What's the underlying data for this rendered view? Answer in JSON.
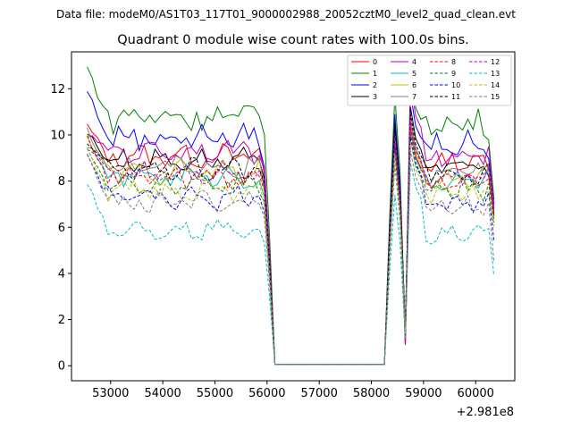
{
  "figure": {
    "suptitle": "Data file: modeM0/AS1T03_117T01_9000002988_20052cztM0_level2_quad_clean.evt"
  },
  "chart_data": {
    "type": "line",
    "title": "Quadrant 0 module wise count rates with 100.0s bins.",
    "xlabel": "",
    "ylabel": "",
    "x_offset_label": "+2.981e8",
    "xlim": [
      52250,
      60750
    ],
    "ylim": [
      -0.65,
      13.6
    ],
    "x_ticks": [
      53000,
      54000,
      55000,
      56000,
      57000,
      58000,
      59000,
      60000
    ],
    "x_tick_labels": [
      "53000",
      "54000",
      "55000",
      "56000",
      "57000",
      "58000",
      "59000",
      "60000"
    ],
    "y_ticks": [
      0,
      2,
      4,
      6,
      8,
      10,
      12
    ],
    "y_tick_labels": [
      "0",
      "2",
      "4",
      "6",
      "8",
      "10",
      "12"
    ],
    "legend_position": "top-right",
    "legend_columns": 4,
    "series": [
      {
        "name": "0",
        "color": "#ff0000",
        "dash": "solid",
        "level": 9.1,
        "start": 10.4,
        "amp": 0.35,
        "gap_left": 8.3,
        "p1": 10.2,
        "p2": 10.3,
        "end": 6.6
      },
      {
        "name": "1",
        "color": "#008000",
        "dash": "solid",
        "level": 10.8,
        "start": 12.9,
        "amp": 0.55,
        "gap_left": 10.0,
        "p1": 11.7,
        "p2": 12.7,
        "end": 7.2
      },
      {
        "name": "2",
        "color": "#0000ff",
        "dash": "solid",
        "level": 9.9,
        "start": 11.9,
        "amp": 0.45,
        "gap_left": 8.6,
        "p1": 10.9,
        "p2": 11.8,
        "end": 7.0
      },
      {
        "name": "3",
        "color": "#000000",
        "dash": "solid",
        "level": 8.9,
        "start": 10.1,
        "amp": 0.35,
        "gap_left": 8.1,
        "p1": 10.5,
        "p2": 11.2,
        "end": 6.5
      },
      {
        "name": "4",
        "color": "#bf00bf",
        "dash": "solid",
        "level": 9.3,
        "start": 10.0,
        "amp": 0.35,
        "gap_left": 8.5,
        "p1": 10.1,
        "p2": 12.3,
        "end": 6.8
      },
      {
        "name": "5",
        "color": "#00bfbf",
        "dash": "solid",
        "level": 8.2,
        "start": 9.6,
        "amp": 0.35,
        "gap_left": 7.3,
        "p1": 9.6,
        "p2": 10.2,
        "end": 6.4
      },
      {
        "name": "6",
        "color": "#bfbf00",
        "dash": "solid",
        "level": 8.4,
        "start": 9.9,
        "amp": 0.35,
        "gap_left": 7.5,
        "p1": 9.9,
        "p2": 10.5,
        "end": 6.3
      },
      {
        "name": "7",
        "color": "#808080",
        "dash": "solid",
        "level": 8.6,
        "start": 10.2,
        "amp": 0.35,
        "gap_left": 7.8,
        "p1": 10.0,
        "p2": 10.7,
        "end": 6.5
      },
      {
        "name": "8",
        "color": "#ff0000",
        "dash": "dashed",
        "level": 8.2,
        "start": 9.9,
        "amp": 0.35,
        "gap_left": 7.6,
        "p1": 9.7,
        "p2": 10.3,
        "end": 6.6
      },
      {
        "name": "9",
        "color": "#008000",
        "dash": "dashed",
        "level": 7.9,
        "start": 9.4,
        "amp": 0.35,
        "gap_left": 7.1,
        "p1": 9.3,
        "p2": 10.0,
        "end": 6.2
      },
      {
        "name": "10",
        "color": "#0000ff",
        "dash": "dashed",
        "level": 7.3,
        "start": 9.2,
        "amp": 0.35,
        "gap_left": 6.6,
        "p1": 9.5,
        "p2": 9.9,
        "end": 5.4
      },
      {
        "name": "11",
        "color": "#000000",
        "dash": "dashed",
        "level": 8.5,
        "start": 9.7,
        "amp": 0.35,
        "gap_left": 7.9,
        "p1": 10.3,
        "p2": 10.9,
        "end": 6.6
      },
      {
        "name": "12",
        "color": "#bf00bf",
        "dash": "dashed",
        "level": 8.4,
        "start": 9.5,
        "amp": 0.35,
        "gap_left": 7.7,
        "p1": 9.9,
        "p2": 10.6,
        "end": 6.5
      },
      {
        "name": "13",
        "color": "#00bfbf",
        "dash": "dashed",
        "level": 5.9,
        "start": 8.0,
        "amp": 0.3,
        "gap_left": 5.3,
        "p1": 7.4,
        "p2": 8.8,
        "end": 3.9
      },
      {
        "name": "14",
        "color": "#bfbf00",
        "dash": "dashed",
        "level": 7.6,
        "start": 9.3,
        "amp": 0.35,
        "gap_left": 6.9,
        "p1": 9.2,
        "p2": 9.7,
        "end": 6.0
      },
      {
        "name": "15",
        "color": "#808080",
        "dash": "dashed",
        "level": 7.1,
        "start": 9.1,
        "amp": 0.35,
        "gap_left": 6.4,
        "p1": 8.7,
        "p2": 9.3,
        "end": 4.5
      }
    ]
  }
}
